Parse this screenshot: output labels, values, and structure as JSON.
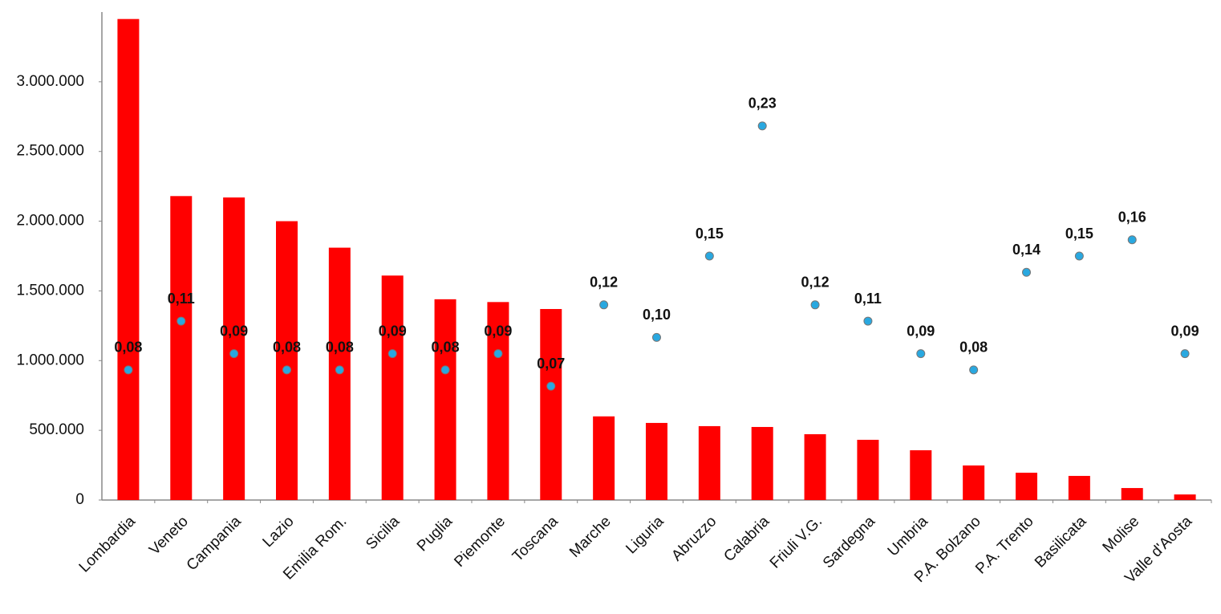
{
  "chart_data": {
    "type": "bar",
    "categories": [
      "Lombardia",
      "Veneto",
      "Campania",
      "Lazio",
      "Emilia Rom.",
      "Sicilia",
      "Puglia",
      "Piemonte",
      "Toscana",
      "Marche",
      "Liguria",
      "Abruzzo",
      "Calabria",
      "Friuli V.G.",
      "Sardegna",
      "Umbria",
      "P.A. Bolzano",
      "P.A. Trento",
      "Basilicata",
      "Molise",
      "Valle d'Aosta"
    ],
    "series": [
      {
        "type": "bar",
        "color": "#ff0000",
        "values": [
          3450000,
          2180000,
          2170000,
          2000000,
          1810000,
          1610000,
          1440000,
          1420000,
          1370000,
          600000,
          553000,
          530000,
          524000,
          472000,
          432000,
          357000,
          248000,
          196000,
          173000,
          86000,
          40000
        ]
      },
      {
        "type": "scatter",
        "axis": "y2",
        "color": "#29a8e0",
        "values": [
          0.08,
          0.11,
          0.09,
          0.08,
          0.08,
          0.09,
          0.08,
          0.09,
          0.07,
          0.12,
          0.1,
          0.15,
          0.23,
          0.12,
          0.11,
          0.09,
          0.08,
          0.14,
          0.15,
          0.16,
          0.09
        ],
        "value_labels": [
          "0,08",
          "0,11",
          "0,09",
          "0,08",
          "0,08",
          "0,09",
          "0,08",
          "0,09",
          "0,07",
          "0,12",
          "0,10",
          "0,15",
          "0,23",
          "0,12",
          "0,11",
          "0,09",
          "0,08",
          "0,14",
          "0,15",
          "0,16",
          "0,09"
        ]
      }
    ],
    "ylim": [
      0,
      3500000
    ],
    "yticks": [
      0,
      {
        "value": 500000,
        "label": "500.000"
      },
      {
        "value": 1000000,
        "label": "1.000.000"
      },
      {
        "value": 1500000,
        "label": "1.500.000"
      },
      {
        "value": 2000000,
        "label": "2.000.000"
      },
      {
        "value": 2500000,
        "label": "2.500.000"
      },
      {
        "value": 3000000,
        "label": "3.000.000"
      }
    ],
    "y2lim": [
      0,
      0.3
    ],
    "grid": false
  }
}
